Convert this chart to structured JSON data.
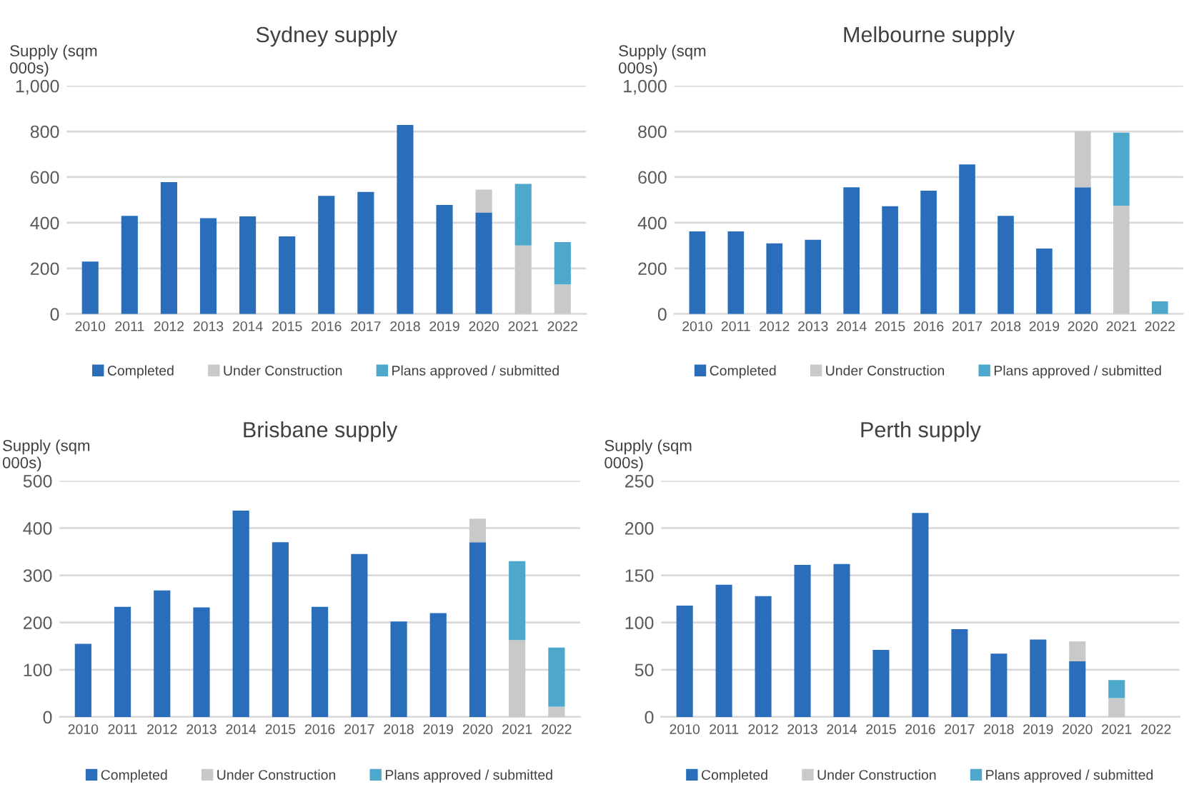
{
  "chart_data": [
    {
      "type": "bar",
      "title": "Sydney supply",
      "ylabel": "Supply (sqm\n000s)",
      "stacked": true,
      "grid": "y",
      "legend": "bottom",
      "categories": [
        "2010",
        "2011",
        "2012",
        "2013",
        "2014",
        "2015",
        "2016",
        "2017",
        "2018",
        "2019",
        "2020",
        "2021",
        "2022"
      ],
      "ylim": [
        0,
        1000
      ],
      "yticks": [
        0,
        200,
        400,
        600,
        800,
        {
          "value": 1000,
          "label": "1,000"
        }
      ],
      "series": [
        {
          "name": "Completed",
          "color": "#2a6ebb",
          "values": [
            230,
            430,
            578,
            420,
            428,
            340,
            518,
            535,
            828,
            478,
            445,
            null,
            null
          ]
        },
        {
          "name": "Under Construction",
          "color": "#c9c9c9",
          "values": [
            null,
            null,
            null,
            null,
            null,
            null,
            null,
            null,
            null,
            null,
            100,
            300,
            130
          ]
        },
        {
          "name": "Plans approved / submitted",
          "color": "#4ea8cb",
          "values": [
            null,
            null,
            null,
            null,
            null,
            null,
            null,
            null,
            null,
            null,
            null,
            270,
            185
          ]
        }
      ]
    },
    {
      "type": "bar",
      "title": "Melbourne supply",
      "ylabel": "Supply (sqm\n000s)",
      "stacked": true,
      "grid": "y",
      "legend": "bottom",
      "categories": [
        "2010",
        "2011",
        "2012",
        "2013",
        "2014",
        "2015",
        "2016",
        "2017",
        "2018",
        "2019",
        "2020",
        "2021",
        "2022"
      ],
      "ylim": [
        0,
        1000
      ],
      "yticks": [
        0,
        200,
        400,
        600,
        800,
        {
          "value": 1000,
          "label": "1,000"
        }
      ],
      "series": [
        {
          "name": "Completed",
          "color": "#2a6ebb",
          "values": [
            362,
            362,
            310,
            325,
            555,
            472,
            540,
            655,
            430,
            287,
            555,
            null,
            null
          ]
        },
        {
          "name": "Under Construction",
          "color": "#c9c9c9",
          "values": [
            null,
            null,
            null,
            null,
            null,
            null,
            null,
            null,
            null,
            null,
            245,
            475,
            null
          ]
        },
        {
          "name": "Plans approved / submitted",
          "color": "#4ea8cb",
          "values": [
            null,
            null,
            null,
            null,
            null,
            null,
            null,
            null,
            null,
            null,
            null,
            320,
            55
          ]
        }
      ]
    },
    {
      "type": "bar",
      "title": "Brisbane supply",
      "ylabel": "Supply (sqm\n000s)",
      "stacked": true,
      "grid": "y",
      "legend": "bottom",
      "categories": [
        "2010",
        "2011",
        "2012",
        "2013",
        "2014",
        "2015",
        "2016",
        "2017",
        "2018",
        "2019",
        "2020",
        "2021",
        "2022"
      ],
      "ylim": [
        0,
        500
      ],
      "yticks": [
        0,
        100,
        200,
        300,
        400,
        500
      ],
      "series": [
        {
          "name": "Completed",
          "color": "#2a6ebb",
          "values": [
            155,
            233,
            268,
            232,
            437,
            370,
            233,
            345,
            202,
            220,
            370,
            null,
            null
          ]
        },
        {
          "name": "Under Construction",
          "color": "#c9c9c9",
          "values": [
            null,
            null,
            null,
            null,
            null,
            null,
            null,
            null,
            null,
            null,
            50,
            163,
            22
          ]
        },
        {
          "name": "Plans approved / submitted",
          "color": "#4ea8cb",
          "values": [
            null,
            null,
            null,
            null,
            null,
            null,
            null,
            null,
            null,
            null,
            null,
            167,
            125
          ]
        }
      ]
    },
    {
      "type": "bar",
      "title": "Perth supply",
      "ylabel": "Supply (sqm\n000s)",
      "stacked": true,
      "grid": "y",
      "legend": "bottom",
      "categories": [
        "2010",
        "2011",
        "2012",
        "2013",
        "2014",
        "2015",
        "2016",
        "2017",
        "2018",
        "2019",
        "2020",
        "2021",
        "2022"
      ],
      "ylim": [
        0,
        250
      ],
      "yticks": [
        0,
        50,
        100,
        150,
        200,
        250
      ],
      "series": [
        {
          "name": "Completed",
          "color": "#2a6ebb",
          "values": [
            118,
            140,
            128,
            161,
            162,
            71,
            216,
            93,
            67,
            82,
            59,
            null,
            null
          ]
        },
        {
          "name": "Under Construction",
          "color": "#c9c9c9",
          "values": [
            null,
            null,
            null,
            null,
            null,
            null,
            null,
            null,
            null,
            null,
            21,
            20,
            null
          ]
        },
        {
          "name": "Plans approved / submitted",
          "color": "#4ea8cb",
          "values": [
            null,
            null,
            null,
            null,
            null,
            null,
            null,
            null,
            null,
            null,
            null,
            19,
            null
          ]
        }
      ]
    }
  ]
}
